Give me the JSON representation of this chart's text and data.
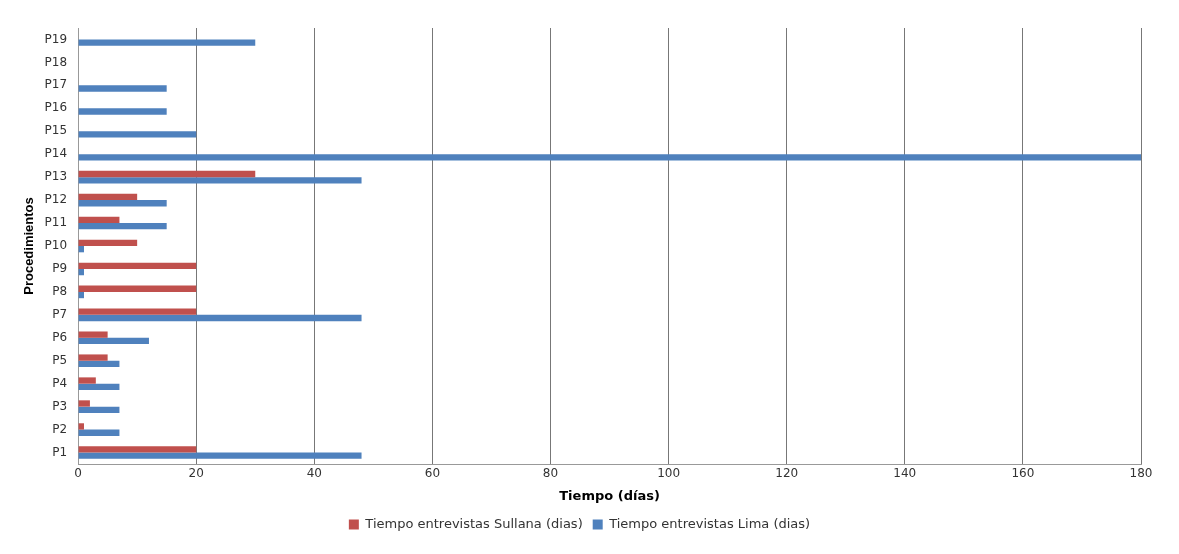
{
  "chart_data": {
    "type": "bar",
    "orientation": "horizontal",
    "xlabel": "Tiempo (días)",
    "ylabel": "Procedimientos",
    "categories": [
      "P19",
      "P18",
      "P17",
      "P16",
      "P15",
      "P14",
      "P13",
      "P12",
      "P11",
      "P10",
      "P9",
      "P8",
      "P7",
      "P6",
      "P5",
      "P4",
      "P3",
      "P2",
      "P1"
    ],
    "series": [
      {
        "name": "Tiempo entrevistas Sullana (dias)",
        "color": "#c0504d",
        "values": [
          null,
          null,
          null,
          null,
          null,
          null,
          30,
          10,
          7,
          10,
          20,
          20,
          20,
          5,
          5,
          3,
          2,
          1,
          20
        ]
      },
      {
        "name": "Tiempo entrevistas Lima (dias)",
        "color": "#4f81bd",
        "values": [
          30,
          null,
          15,
          15,
          20,
          180,
          48,
          15,
          15,
          1,
          1,
          1,
          48,
          12,
          7,
          7,
          7,
          7,
          48
        ]
      }
    ],
    "xlim": [
      0,
      180
    ],
    "xticks": [
      0,
      20,
      40,
      60,
      80,
      100,
      120,
      140,
      160,
      180
    ],
    "grid": "x",
    "legend": "bottom"
  }
}
